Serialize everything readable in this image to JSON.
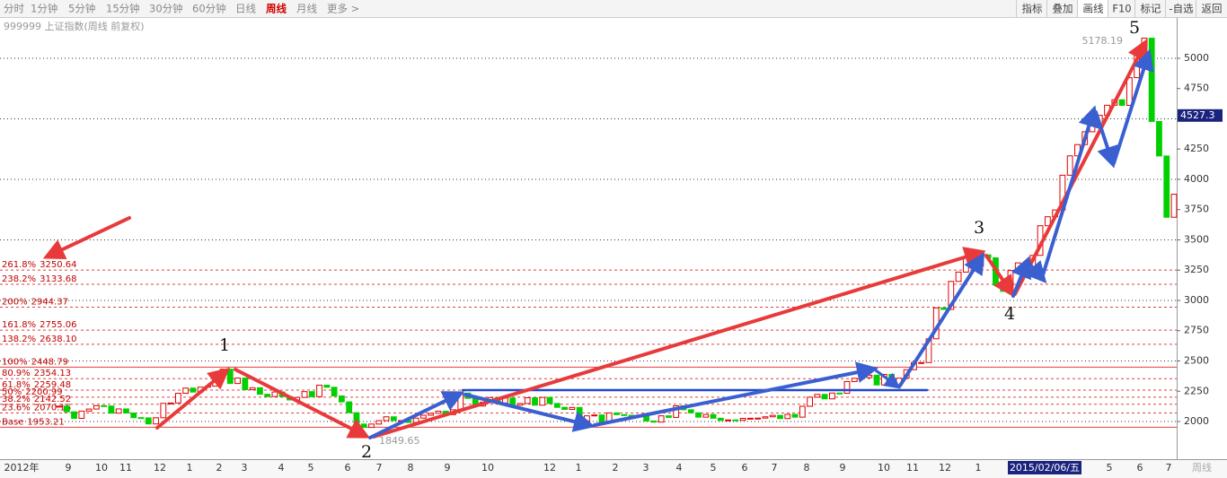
{
  "toolbar": {
    "periods": [
      "分时",
      "1分钟",
      "5分钟",
      "15分钟",
      "30分钟",
      "60分钟",
      "日线",
      "周线",
      "月线",
      "更多 >"
    ],
    "tools": [
      "指标",
      "叠加",
      "画线",
      "F10",
      "标记",
      "-自选",
      "返回"
    ]
  },
  "chart_data": {
    "type": "candlestick",
    "title": "999999 上证指数(周线 前复权)",
    "values": [
      2127,
      2080,
      2026,
      2086,
      2103,
      2131,
      2128,
      2069,
      2104,
      2070,
      2032,
      2030,
      1980,
      2031,
      2150,
      2153,
      2233,
      2276,
      2243,
      2284,
      2292,
      2385,
      2432,
      2314,
      2359,
      2263,
      2279,
      2225,
      2206,
      2244,
      2206,
      2178,
      2199,
      2247,
      2205,
      2300,
      2283,
      2211,
      2162,
      2073,
      1979,
      1951,
      1979,
      2007,
      2039,
      2008,
      2008,
      1992,
      2028,
      2052,
      2068,
      2085,
      2057,
      2097,
      2235,
      2191,
      2128,
      2160,
      2198,
      2153,
      2194,
      2135,
      2149,
      2196,
      2135,
      2199,
      2149,
      2117,
      2100,
      2116,
      2004,
      2047,
      2054,
      1991,
      2071,
      2057,
      2052,
      2041,
      2053,
      2004,
      1995,
      2047,
      2034,
      2130,
      2097,
      2072,
      2036,
      2058,
      2027,
      2009,
      2013,
      2010,
      2026,
      2027,
      2028,
      2039,
      2051,
      2024,
      2059,
      2036,
      2126,
      2201,
      2224,
      2187,
      2235,
      2233,
      2330,
      2357,
      2363,
      2382,
      2302,
      2389,
      2302,
      2358,
      2428,
      2487,
      2487,
      2683,
      2938,
      2926,
      3157,
      3234,
      3350,
      3285,
      3376,
      3352,
      3128,
      3075,
      3247,
      3310,
      3241,
      3372,
      3617,
      3691,
      3747,
      4034,
      4194,
      4287,
      4393,
      4441,
      4529,
      4612,
      4657,
      4611,
      4840,
      5023,
      5166,
      4478,
      4193,
      3687,
      3877
    ],
    "up_color": "#e00000",
    "down_color": "#00d000",
    "ylim": [
      1689,
      5333
    ],
    "yticks": [
      2000,
      2250,
      2500,
      2750,
      3000,
      3250,
      3500,
      3750,
      4000,
      4250,
      4500,
      4750,
      5000
    ],
    "grid": true,
    "x_labels": [
      "2012年",
      "9",
      "10",
      "11",
      "12",
      "1",
      "2",
      "3",
      "4",
      "5",
      "6",
      "7",
      "8",
      "9",
      "10",
      "12",
      "1",
      "2",
      "3",
      "4",
      "5",
      "6",
      "7",
      "8",
      "9",
      "10",
      "11",
      "12",
      "1",
      "2015/02/06/五",
      "5",
      "6",
      "7"
    ],
    "period_label": "周线",
    "last_price": 4527.3,
    "high_mark": 5178.19,
    "low_mark": 1849.65,
    "waves": [
      "1",
      "2",
      "3",
      "4",
      "5"
    ],
    "fib_levels": [
      {
        "pct": "261.8%",
        "value": 3250.64,
        "line": "dashed"
      },
      {
        "pct": "238.2%",
        "value": 3133.68,
        "line": "dashed"
      },
      {
        "pct": "200%",
        "value": 2944.37,
        "line": "dashed"
      },
      {
        "pct": "161.8%",
        "value": 2755.06,
        "line": "dashed"
      },
      {
        "pct": "138.2%",
        "value": {
          "value": 2638.1,
          "label": "2638.10"
        },
        "line": "dashed"
      },
      {
        "pct": "100%",
        "value": 2448.79,
        "line": "solid"
      },
      {
        "pct": "80.9%",
        "value": 2354.13,
        "line": "dashed"
      },
      {
        "pct": "61.8%",
        "value": 2259.48,
        "line": "dashed"
      },
      {
        "pct": "50%",
        "value": 2200.99,
        "line": "dashed"
      },
      {
        "pct": "38.2%",
        "value": 2142.52,
        "line": "dashed"
      },
      {
        "pct": "23.6%",
        "value": 2070.16,
        "line": "dashed"
      },
      {
        "pct": "Base",
        "value": 1953.21,
        "line": "solid"
      }
    ]
  }
}
